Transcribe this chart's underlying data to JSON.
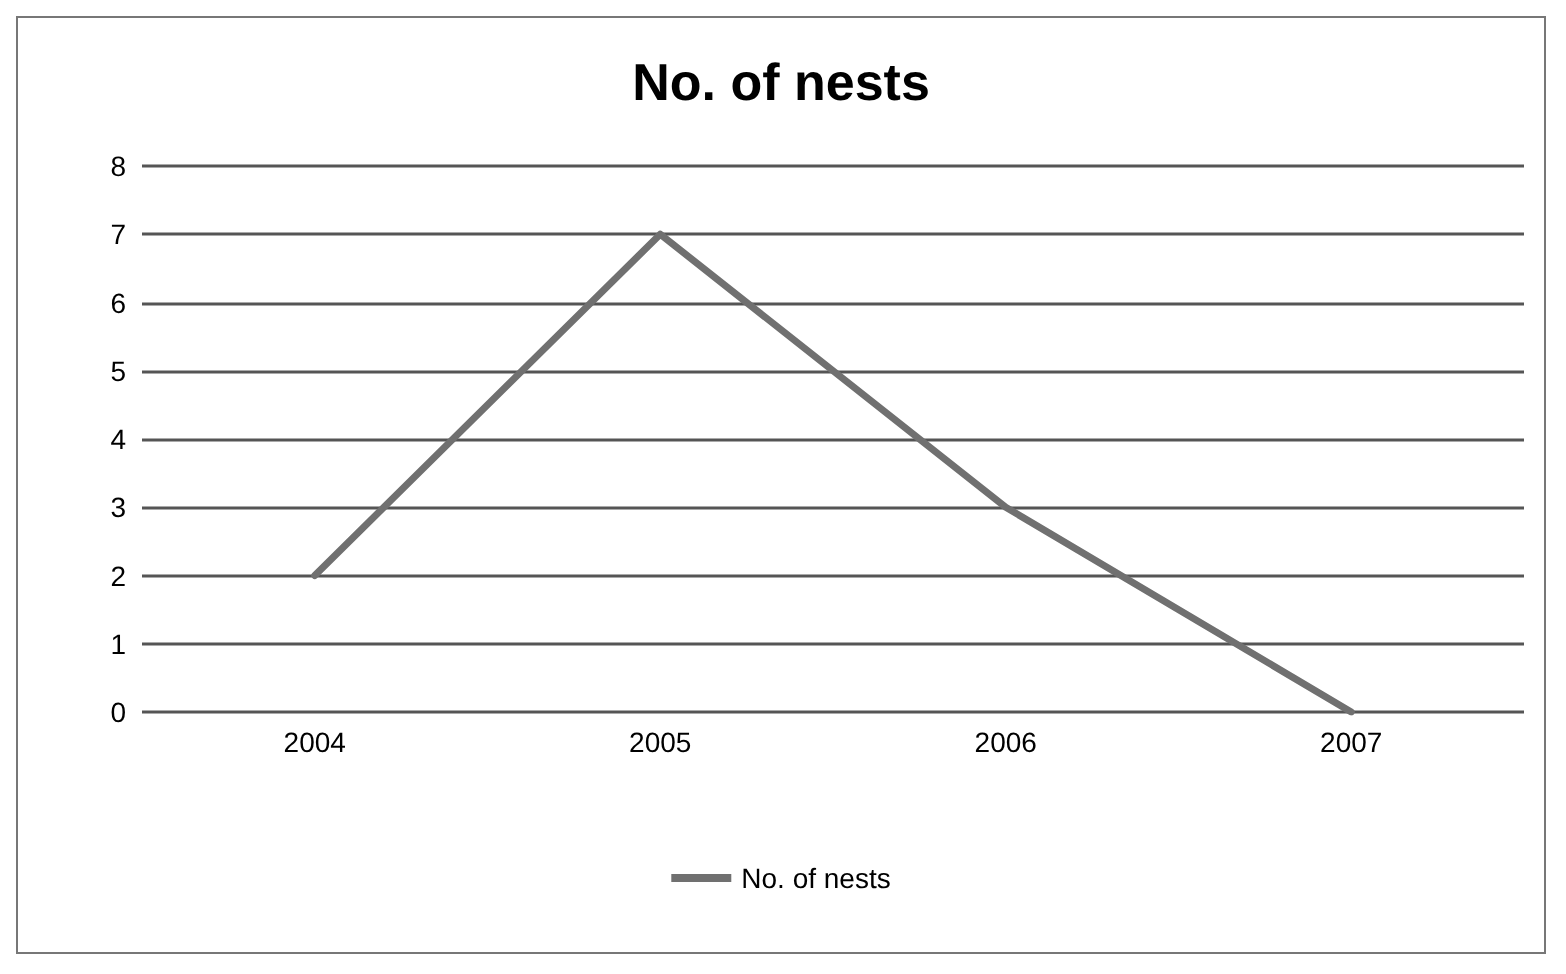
{
  "chart_data": {
    "type": "line",
    "title": "No. of nests",
    "categories": [
      "2004",
      "2005",
      "2006",
      "2007"
    ],
    "series": [
      {
        "name": "No. of nests",
        "color": "#707070",
        "values": [
          2,
          7,
          3,
          0
        ]
      }
    ],
    "ylim": [
      0,
      8
    ],
    "yticks": [
      0,
      1,
      2,
      3,
      4,
      5,
      6,
      7,
      8
    ],
    "grid": "y",
    "legend": "bottom",
    "marker": "none",
    "line_style": "solid"
  }
}
